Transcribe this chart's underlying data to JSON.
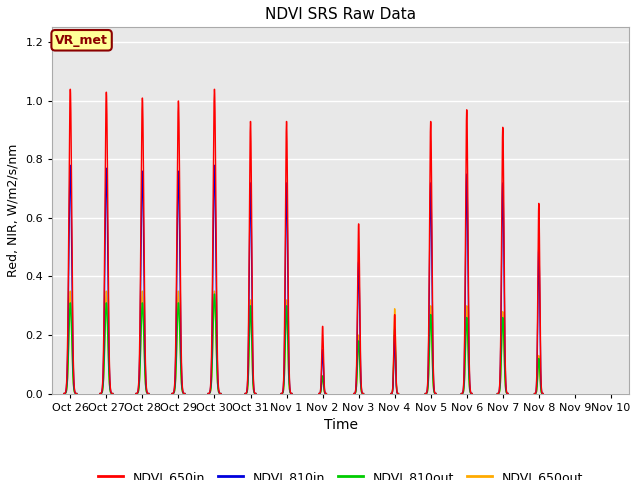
{
  "title": "NDVI SRS Raw Data",
  "ylabel": "Red, NIR, W/m2/s/nm",
  "xlabel": "Time",
  "ylim": [
    0,
    1.25
  ],
  "yticks": [
    0.0,
    0.2,
    0.4,
    0.6,
    0.8,
    1.0,
    1.2
  ],
  "xtick_labels": [
    "Oct 26",
    "Oct 27",
    "Oct 28",
    "Oct 29",
    "Oct 30",
    "Oct 31",
    "Nov 1",
    "Nov 2",
    "Nov 3",
    "Nov 4",
    "Nov 5",
    "Nov 6",
    "Nov 7",
    "Nov 8",
    "Nov 9",
    "Nov 10"
  ],
  "xtick_positions": [
    0,
    1,
    2,
    3,
    4,
    5,
    6,
    7,
    8,
    9,
    10,
    11,
    12,
    13,
    14,
    15
  ],
  "xlim": [
    -0.5,
    15.5
  ],
  "colors": {
    "NDVI_650in": "#ff0000",
    "NDVI_810in": "#0000dd",
    "NDVI_810out": "#00cc00",
    "NDVI_650out": "#ffaa00"
  },
  "annotation_text": "VR_met",
  "annotation_bg": "#ffff99",
  "annotation_border": "#8b0000",
  "bg_color": "#e8e8e8",
  "day_peaks_650in": [
    1.04,
    1.03,
    1.01,
    1.0,
    1.04,
    0.93,
    0.93,
    0.23,
    0.58,
    0.27,
    0.93,
    0.97,
    0.91,
    0.65
  ],
  "day_peaks_810in": [
    0.78,
    0.77,
    0.76,
    0.76,
    0.78,
    0.72,
    0.72,
    0.15,
    0.45,
    0.2,
    0.72,
    0.75,
    0.72,
    0.5
  ],
  "day_peaks_810out": [
    0.31,
    0.31,
    0.31,
    0.31,
    0.34,
    0.3,
    0.3,
    0.06,
    0.18,
    0.22,
    0.27,
    0.26,
    0.26,
    0.12
  ],
  "day_peaks_650out": [
    0.35,
    0.35,
    0.35,
    0.35,
    0.35,
    0.32,
    0.32,
    0.06,
    0.2,
    0.29,
    0.3,
    0.3,
    0.28,
    0.13
  ],
  "day_centers": [
    0,
    1,
    2,
    3,
    4,
    5,
    6,
    7,
    8,
    9,
    10,
    11,
    12,
    13
  ],
  "spike_half_widths": [
    0.12,
    0.12,
    0.12,
    0.12,
    0.12,
    0.1,
    0.1,
    0.07,
    0.09,
    0.07,
    0.1,
    0.1,
    0.1,
    0.08
  ],
  "figsize": [
    6.4,
    4.8
  ],
  "dpi": 100
}
